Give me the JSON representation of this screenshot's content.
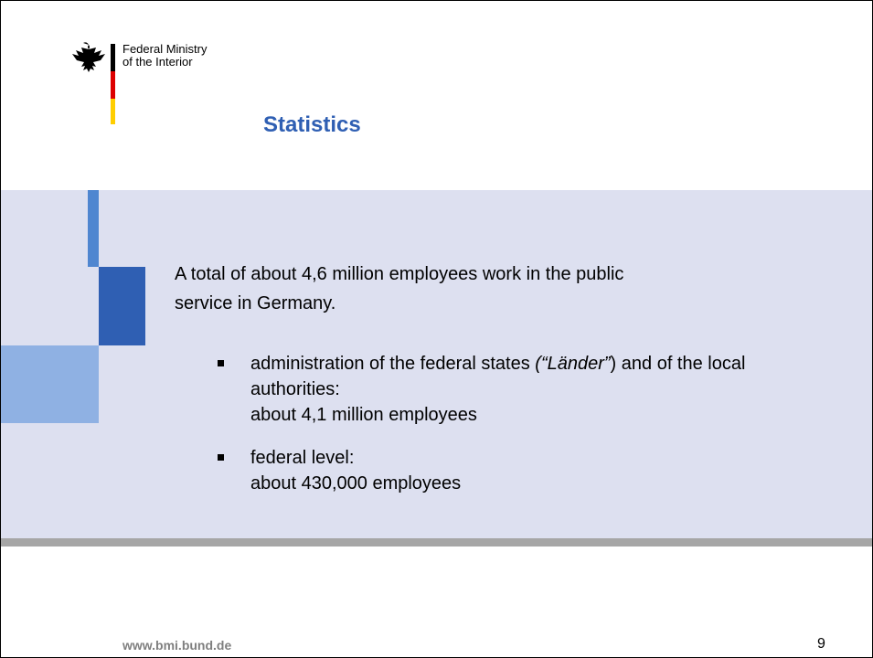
{
  "header": {
    "organization": [
      "Federal Ministry",
      "of the Interior"
    ],
    "title": "Statistics"
  },
  "body": {
    "intro": "A total of about 4,6 million employees work in the public service in Germany.",
    "bullets": [
      {
        "parts": [
          "administration of the federal states ",
          "(“Länder”",
          ") and of the local authorities:"
        ],
        "detail": "about 4,1 million employees"
      },
      {
        "parts": [
          "federal level:"
        ],
        "detail": "about 430,000 employees"
      }
    ]
  },
  "footer": {
    "url": "www.bmi.bund.de",
    "page": "9"
  }
}
